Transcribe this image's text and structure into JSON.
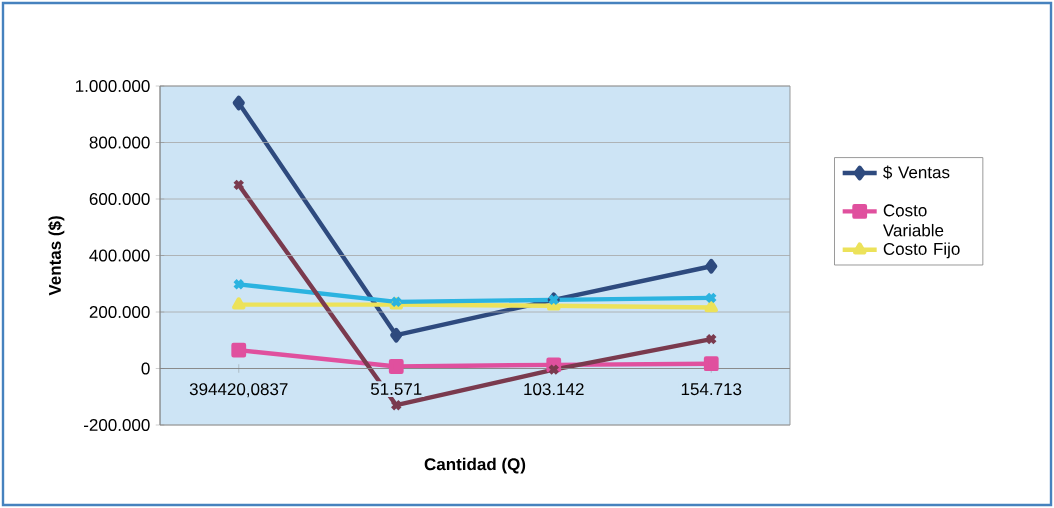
{
  "chart_data": {
    "type": "line",
    "xlabel": "Cantidad (Q)",
    "ylabel": "Ventas ($)",
    "categories": [
      "394420,0837",
      "51.571",
      "103.142",
      "154.713"
    ],
    "series": [
      {
        "name": "$ Ventas",
        "color": "#2e4a7e",
        "marker": "diamond",
        "values": [
          940000,
          118000,
          243000,
          362000
        ]
      },
      {
        "name": "Costo Variable",
        "color": "#e0509e",
        "marker": "square",
        "values": [
          65000,
          7000,
          13000,
          17000
        ]
      },
      {
        "name": "Costo Fijo",
        "color": "#ece25a",
        "marker": "triangle",
        "values": [
          226000,
          226000,
          222000,
          216000
        ]
      },
      {
        "color": "#2bb3e0",
        "marker": "cross",
        "values": [
          298000,
          236000,
          243000,
          250000
        ]
      },
      {
        "color": "#7a3a4e",
        "marker": "cross",
        "values": [
          650000,
          -130000,
          -4000,
          104000
        ]
      }
    ],
    "ylim": [
      -200000,
      1000000
    ],
    "yticks": [
      {
        "value": -200000,
        "label": "-200.000"
      },
      {
        "value": 0,
        "label": "0"
      },
      {
        "value": 200000,
        "label": "200.000"
      },
      {
        "value": 400000,
        "label": "400.000"
      },
      {
        "value": 600000,
        "label": "600.000"
      },
      {
        "value": 800000,
        "label": "800.000"
      },
      {
        "value": 1000000,
        "label": "1.000.000"
      }
    ],
    "grid": "y",
    "legend": "right"
  }
}
